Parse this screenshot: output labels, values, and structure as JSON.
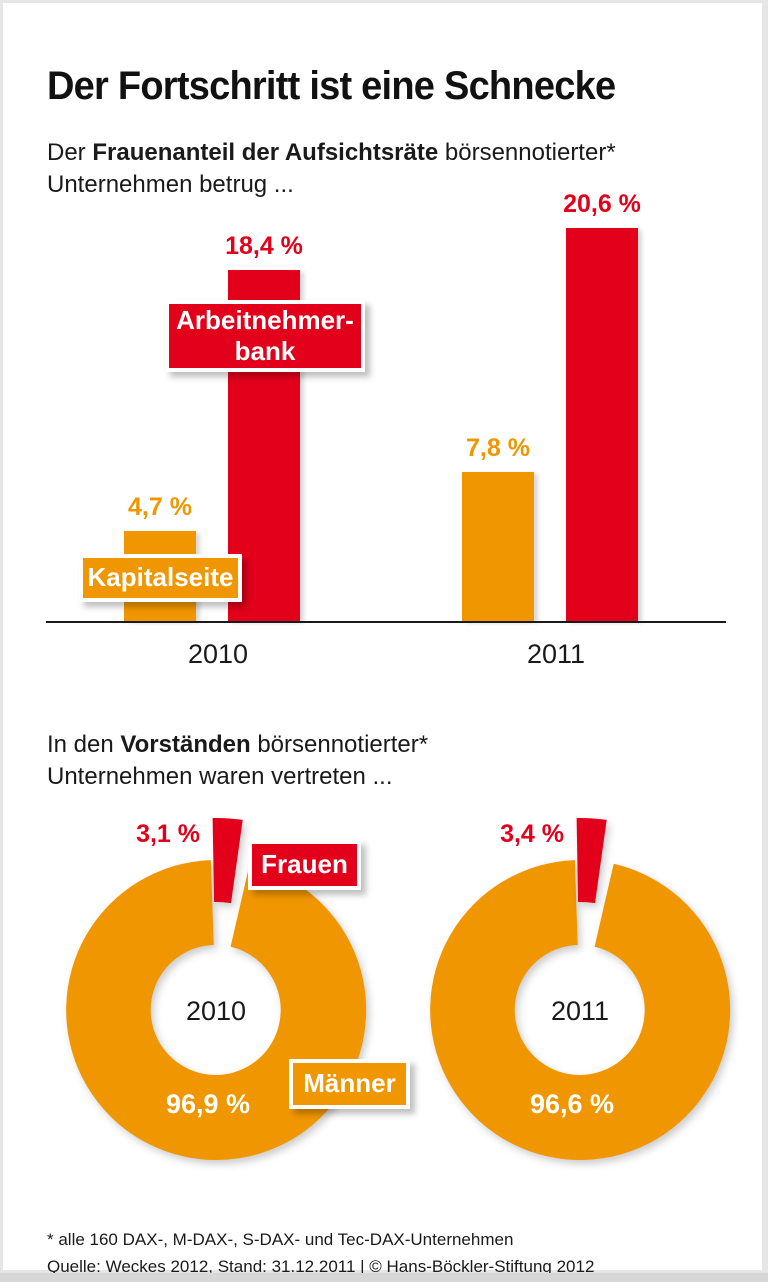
{
  "header": {
    "title": "Der Fortschritt ist eine Schnecke"
  },
  "sections": [
    {
      "id": "aufsichtsraete",
      "intro": {
        "pre": "Der ",
        "bold": "Frauenanteil der Aufsichtsräte",
        "post": " börsennotierter*",
        "line2": "Unternehmen betrug ..."
      }
    },
    {
      "id": "vorstaende",
      "intro": {
        "pre": "In den ",
        "bold": "Vorständen",
        "post": " börsennotierter*",
        "line2": "Unternehmen waren vertreten ..."
      }
    }
  ],
  "colors": {
    "red": "#e2001a",
    "orange": "#f09600",
    "axis": "#1a1a1a"
  },
  "chart_data": [
    {
      "type": "bar",
      "title": "Der Frauenanteil der Aufsichtsräte börsennotierter Unternehmen betrug ...",
      "categories": [
        "2010",
        "2011"
      ],
      "series": [
        {
          "name": "Kapitalseite",
          "color_key": "orange",
          "values": [
            4.7,
            7.8
          ],
          "value_labels": [
            "4,7 %",
            "7,8 %"
          ]
        },
        {
          "name": "Arbeitnehmerbank",
          "color_key": "red",
          "values": [
            18.4,
            20.6
          ],
          "value_labels": [
            "18,4 %",
            "20,6 %"
          ]
        }
      ],
      "unit": "%",
      "ylim": [
        0,
        22
      ],
      "grid": false,
      "legend_position": "on-chart-callouts",
      "callouts": {
        "arbeitnehmerbank_line1": "Arbeitnehmer-",
        "arbeitnehmerbank_line2": "bank",
        "kapitalseite": "Kapitalseite"
      }
    },
    {
      "type": "pie",
      "subtype": "donut-exploded-slice",
      "title": "In den Vorständen börsennotierter Unternehmen waren vertreten ...",
      "donuts": [
        {
          "center_label": "2010",
          "slices": [
            {
              "name": "Frauen",
              "value": 3.1,
              "label": "3,1 %",
              "color_key": "red"
            },
            {
              "name": "Männer",
              "value": 96.9,
              "label": "96,9 %",
              "color_key": "orange"
            }
          ]
        },
        {
          "center_label": "2011",
          "slices": [
            {
              "name": "Frauen",
              "value": 3.4,
              "label": "3,4 %",
              "color_key": "red"
            },
            {
              "name": "Männer",
              "value": 96.6,
              "label": "96,6 %",
              "color_key": "orange"
            }
          ]
        }
      ],
      "callouts": {
        "frauen": "Frauen",
        "maenner": "Männer"
      }
    }
  ],
  "footer": {
    "line1": "* alle 160 DAX-, M-DAX-, S-DAX- und Tec-DAX-Unternehmen",
    "line2": "Quelle: Weckes 2012, Stand: 31.12.2011 | © Hans-Böckler-Stiftung 2012"
  }
}
